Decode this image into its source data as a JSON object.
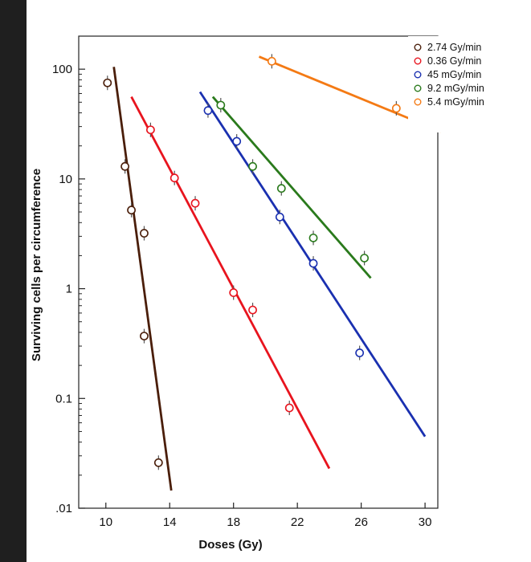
{
  "chart_data": {
    "type": "scatter",
    "title": "",
    "xlabel": "Doses (Gy)",
    "ylabel": "Surviving cells per circumference",
    "x_ticks": [
      10,
      14,
      18,
      22,
      26,
      30
    ],
    "x_tick_labels": [
      "10",
      "14",
      "18",
      "22",
      "26",
      "30"
    ],
    "xlim": [
      8.3,
      30.8
    ],
    "y_scale": "log",
    "y_ticks": [
      100,
      10,
      1,
      0.1,
      0.01
    ],
    "y_tick_labels": [
      "100",
      "10",
      "1",
      "0.1",
      ".01"
    ],
    "ylim": [
      0.01,
      200
    ],
    "grid": false,
    "legend_position": "top-right-outside",
    "series": [
      {
        "name": "2.74 Gy/min",
        "color": "#4a1e0a",
        "points": [
          [
            10.1,
            75
          ],
          [
            11.2,
            13
          ],
          [
            11.6,
            5.2
          ],
          [
            12.4,
            3.2
          ],
          [
            12.4,
            0.37
          ],
          [
            13.3,
            0.026
          ]
        ],
        "fit_line": [
          [
            10.5,
            105
          ],
          [
            14.1,
            0.0145
          ]
        ]
      },
      {
        "name": "0.36 Gy/min",
        "color": "#e8141e",
        "points": [
          [
            12.8,
            28
          ],
          [
            14.3,
            10.2
          ],
          [
            15.6,
            6.0
          ],
          [
            18.0,
            0.92
          ],
          [
            19.2,
            0.64
          ],
          [
            21.5,
            0.082
          ]
        ],
        "fit_line": [
          [
            11.6,
            56
          ],
          [
            24.0,
            0.023
          ]
        ]
      },
      {
        "name": "45 mGy/min",
        "color": "#1a30b0",
        "points": [
          [
            16.4,
            42
          ],
          [
            18.2,
            22
          ],
          [
            20.9,
            4.5
          ],
          [
            23.0,
            1.7
          ],
          [
            25.9,
            0.26
          ]
        ],
        "fit_line": [
          [
            15.9,
            62
          ],
          [
            30.0,
            0.045
          ]
        ]
      },
      {
        "name": "9.2 mGy/min",
        "color": "#2a7a1c",
        "points": [
          [
            17.2,
            47
          ],
          [
            19.2,
            13
          ],
          [
            21.0,
            8.2
          ],
          [
            23.0,
            2.9
          ],
          [
            26.2,
            1.9
          ]
        ],
        "fit_line": [
          [
            16.7,
            56
          ],
          [
            26.6,
            1.25
          ]
        ]
      },
      {
        "name": "5.4 mGy/min",
        "color": "#f47a14",
        "points": [
          [
            20.4,
            118
          ],
          [
            28.2,
            44
          ],
          [
            30.2,
            32
          ]
        ],
        "fit_line": [
          [
            19.6,
            130
          ],
          [
            31.0,
            27
          ]
        ]
      }
    ]
  }
}
